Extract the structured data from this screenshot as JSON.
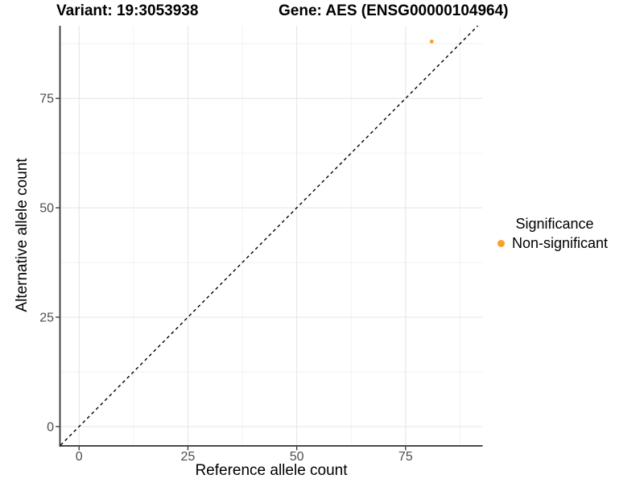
{
  "header": {
    "variant_title": "Variant: 19:3053938",
    "gene_title": "Gene: AES (ENSG00000104964)"
  },
  "chart_data": {
    "type": "scatter",
    "xlabel": "Reference allele count",
    "ylabel": "Alternative allele count",
    "x_ticks": [
      0,
      25,
      50,
      75
    ],
    "y_ticks": [
      0,
      25,
      50,
      75
    ],
    "x_minor_ticks": [
      12.5,
      37.5,
      62.5,
      87.5
    ],
    "y_minor_ticks": [
      12.5,
      37.5,
      62.5,
      87.5
    ],
    "xlim": [
      -4.3,
      92.6
    ],
    "ylim": [
      -4.25,
      91.6
    ],
    "grid": "major-and-minor",
    "legend_position": "right",
    "points": [
      {
        "x": 81,
        "y": 88,
        "series": "Non-significant"
      }
    ],
    "reference_line": {
      "slope": 1,
      "intercept": 0,
      "style": "dashed"
    }
  },
  "legend": {
    "title": "Significance",
    "items": [
      {
        "label": "Non-significant",
        "color": "#F9A029"
      }
    ]
  },
  "colors": {
    "point_orange": "#F9A029",
    "tick_label": "#4D4D4D",
    "axis_line": "#333333",
    "grid_major": "#E4E4E4",
    "grid_minor": "#F2F2F2",
    "reference_line": "#000000"
  }
}
